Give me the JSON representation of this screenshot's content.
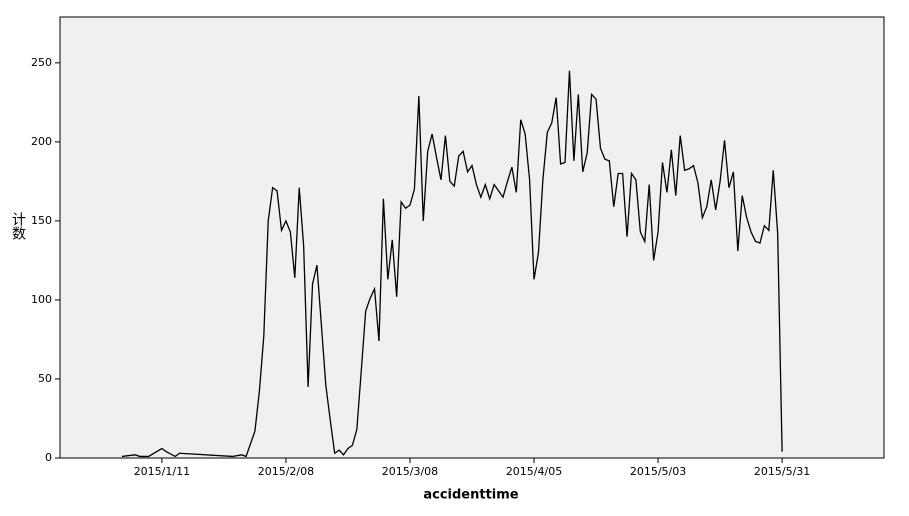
{
  "chart_data": {
    "type": "line",
    "xlabel": "accidenttime",
    "ylabel": "计数",
    "xlim": [
      "2014-12-19",
      "2015-06-23"
    ],
    "xticks": [
      {
        "value": "2015-01-11",
        "label": "2015/1/11"
      },
      {
        "value": "2015-02-08",
        "label": "2015/2/08"
      },
      {
        "value": "2015-03-08",
        "label": "2015/3/08"
      },
      {
        "value": "2015-04-05",
        "label": "2015/4/05"
      },
      {
        "value": "2015-05-03",
        "label": "2015/5/03"
      },
      {
        "value": "2015-05-31",
        "label": "2015/5/31"
      }
    ],
    "ylim": [
      0,
      279
    ],
    "yticks": [
      0,
      50,
      100,
      150,
      200,
      250
    ],
    "color": "#000000",
    "x": [
      "2015-01-02",
      "2015-01-05",
      "2015-01-06",
      "2015-01-08",
      "2015-01-11",
      "2015-01-12",
      "2015-01-14",
      "2015-01-15",
      "2015-01-27",
      "2015-01-29",
      "2015-01-30",
      "2015-02-01",
      "2015-02-02",
      "2015-02-03",
      "2015-02-04",
      "2015-02-05",
      "2015-02-06",
      "2015-02-07",
      "2015-02-08",
      "2015-02-09",
      "2015-02-10",
      "2015-02-11",
      "2015-02-12",
      "2015-02-13",
      "2015-02-14",
      "2015-02-15",
      "2015-02-16",
      "2015-02-17",
      "2015-02-18",
      "2015-02-19",
      "2015-02-20",
      "2015-02-21",
      "2015-02-22",
      "2015-02-23",
      "2015-02-24",
      "2015-02-25",
      "2015-02-26",
      "2015-02-27",
      "2015-02-28",
      "2015-03-01",
      "2015-03-02",
      "2015-03-03",
      "2015-03-04",
      "2015-03-05",
      "2015-03-06",
      "2015-03-07",
      "2015-03-08",
      "2015-03-09",
      "2015-03-10",
      "2015-03-11",
      "2015-03-12",
      "2015-03-13",
      "2015-03-14",
      "2015-03-15",
      "2015-03-16",
      "2015-03-17",
      "2015-03-18",
      "2015-03-19",
      "2015-03-20",
      "2015-03-21",
      "2015-03-22",
      "2015-03-23",
      "2015-03-24",
      "2015-03-25",
      "2015-03-26",
      "2015-03-27",
      "2015-03-28",
      "2015-03-29",
      "2015-03-30",
      "2015-03-31",
      "2015-04-01",
      "2015-04-02",
      "2015-04-03",
      "2015-04-04",
      "2015-04-05",
      "2015-04-06",
      "2015-04-07",
      "2015-04-08",
      "2015-04-09",
      "2015-04-10",
      "2015-04-11",
      "2015-04-12",
      "2015-04-13",
      "2015-04-14",
      "2015-04-15",
      "2015-04-16",
      "2015-04-17",
      "2015-04-18",
      "2015-04-19",
      "2015-04-20",
      "2015-04-21",
      "2015-04-22",
      "2015-04-23",
      "2015-04-24",
      "2015-04-25",
      "2015-04-26",
      "2015-04-27",
      "2015-04-28",
      "2015-04-29",
      "2015-04-30",
      "2015-05-01",
      "2015-05-02",
      "2015-05-03",
      "2015-05-04",
      "2015-05-05",
      "2015-05-06",
      "2015-05-07",
      "2015-05-08",
      "2015-05-09",
      "2015-05-10",
      "2015-05-11",
      "2015-05-12",
      "2015-05-13",
      "2015-05-14",
      "2015-05-15",
      "2015-05-16",
      "2015-05-17",
      "2015-05-18",
      "2015-05-19",
      "2015-05-20",
      "2015-05-21",
      "2015-05-22",
      "2015-05-23",
      "2015-05-24",
      "2015-05-25",
      "2015-05-26",
      "2015-05-27",
      "2015-05-28",
      "2015-05-29",
      "2015-05-30",
      "2015-05-31"
    ],
    "values": [
      1,
      2,
      1,
      1,
      6,
      4,
      1,
      3,
      1,
      2,
      1,
      17,
      42,
      77,
      150,
      171,
      169,
      144,
      150,
      143,
      114,
      171,
      134,
      45,
      110,
      122,
      84,
      46,
      24,
      3,
      5,
      2,
      6,
      8,
      18,
      55,
      93,
      101,
      107,
      74,
      164,
      113,
      138,
      102,
      162,
      158,
      160,
      170,
      229,
      150,
      194,
      205,
      190,
      176,
      204,
      175,
      172,
      191,
      194,
      181,
      185,
      173,
      165,
      173,
      164,
      173,
      169,
      165,
      175,
      184,
      168,
      214,
      205,
      176,
      113,
      130,
      176,
      206,
      212,
      228,
      186,
      187,
      245,
      188,
      230,
      181,
      193,
      230,
      227,
      196,
      189,
      188,
      159,
      180,
      180,
      140,
      180,
      176,
      143,
      137,
      173,
      125,
      143,
      187,
      168,
      195,
      166,
      204,
      182,
      183,
      185,
      174,
      152,
      159,
      176,
      157,
      175,
      201,
      171,
      181,
      131,
      166,
      152,
      143,
      137,
      136,
      147,
      144,
      182,
      142,
      4
    ]
  }
}
